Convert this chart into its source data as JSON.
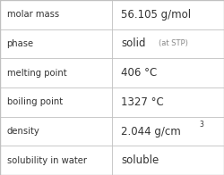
{
  "rows": [
    {
      "label": "molar mass",
      "value": "56.105 g/mol",
      "value_suffix": null,
      "value_superscript": null
    },
    {
      "label": "phase",
      "value": "solid",
      "value_suffix": "(at STP)",
      "value_superscript": null
    },
    {
      "label": "melting point",
      "value": "406 °C",
      "value_suffix": null,
      "value_superscript": null
    },
    {
      "label": "boiling point",
      "value": "1327 °C",
      "value_suffix": null,
      "value_superscript": null
    },
    {
      "label": "density",
      "value": "2.044 g/cm",
      "value_suffix": null,
      "value_superscript": "3"
    },
    {
      "label": "solubility in water",
      "value": "soluble",
      "value_suffix": null,
      "value_superscript": null
    }
  ],
  "col_split": 0.5,
  "background": "#ffffff",
  "grid_color": "#c0c0c0",
  "label_color": "#333333",
  "value_color": "#333333",
  "suffix_color": "#888888",
  "label_fontsize": 7.2,
  "value_fontsize": 8.5,
  "suffix_fontsize": 6.0,
  "super_fontsize": 5.5,
  "font_family": "DejaVu Sans"
}
